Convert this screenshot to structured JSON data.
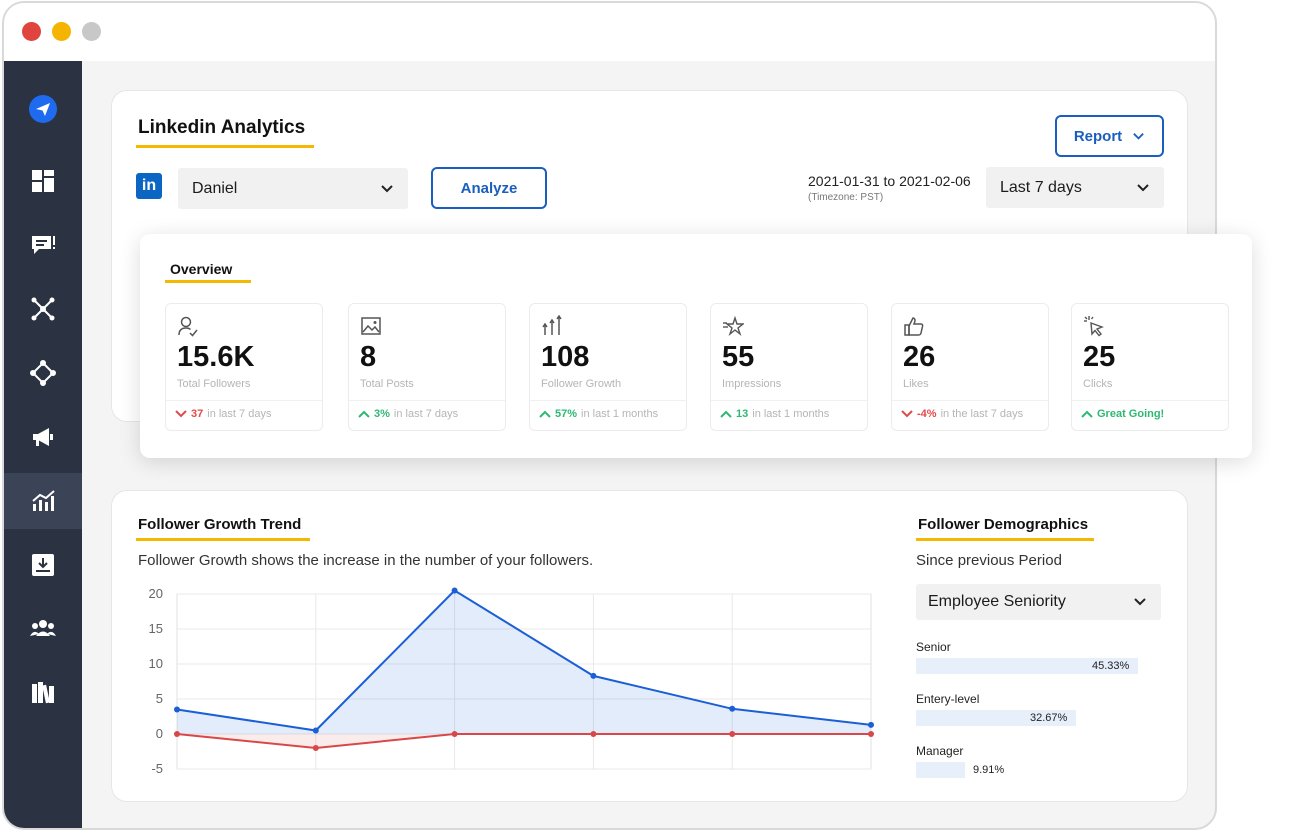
{
  "analytics": {
    "title": "Linkedin Analytics",
    "logo_text": "in",
    "account": "Daniel",
    "analyze_label": "Analyze",
    "report_label": "Report",
    "date_range": "2021-01-31 to 2021-02-06",
    "timezone": "(Timezone: PST)",
    "period": "Last 7 days"
  },
  "overview": {
    "title": "Overview",
    "stats": [
      {
        "icon": "user-check-icon",
        "value": "15.6K",
        "name": "Total Followers",
        "direction": "down",
        "delta": "37",
        "note": "in last 7 days"
      },
      {
        "icon": "image-icon",
        "value": "8",
        "name": "Total Posts",
        "direction": "up",
        "delta": "3%",
        "note": "in last 7 days"
      },
      {
        "icon": "growth-arrows-icon",
        "value": "108",
        "name": "Follower Growth",
        "direction": "up",
        "delta": "57%",
        "note": "in last 1 months"
      },
      {
        "icon": "star-icon",
        "value": "55",
        "name": "Impressions",
        "direction": "up",
        "delta": "13",
        "note": "in last 1 months"
      },
      {
        "icon": "thumbs-up-icon",
        "value": "26",
        "name": "Likes",
        "direction": "down",
        "delta": "-4%",
        "note": "in the last 7 days"
      },
      {
        "icon": "cursor-click-icon",
        "value": "25",
        "name": "Clicks",
        "direction": "up",
        "delta": "Great Going!",
        "note": ""
      }
    ]
  },
  "trend": {
    "title": "Follower Growth Trend",
    "description": "Follower Growth shows the increase in the number of your followers."
  },
  "chart_data": {
    "type": "area",
    "x": [
      1,
      2,
      3,
      4,
      5,
      6
    ],
    "ylim": [
      -5,
      20
    ],
    "yticks": [
      20,
      15,
      10,
      5,
      0,
      -5
    ],
    "grid": true,
    "series": [
      {
        "values": [
          3.5,
          0.5,
          20.5,
          8.3,
          3.6,
          1.3
        ],
        "color": "#1a5fd6"
      },
      {
        "values": [
          0,
          -2,
          0,
          0,
          0,
          0
        ],
        "color": "#d94848"
      }
    ]
  },
  "demographics": {
    "title": "Follower Demographics",
    "subtitle": "Since previous Period",
    "filter": "Employee Seniority",
    "items": [
      {
        "label": "Senior",
        "value": "45.33%",
        "pct": 45.33
      },
      {
        "label": "Entery-level",
        "value": "32.67%",
        "pct": 32.67
      },
      {
        "label": "Manager",
        "value": "9.91%",
        "pct": 9.91
      }
    ]
  },
  "colors": {
    "accent": "#1a5fbf",
    "underline": "#f5b800",
    "sidebar": "#2b3342",
    "up": "#2fb872",
    "down": "#e04a4a"
  }
}
